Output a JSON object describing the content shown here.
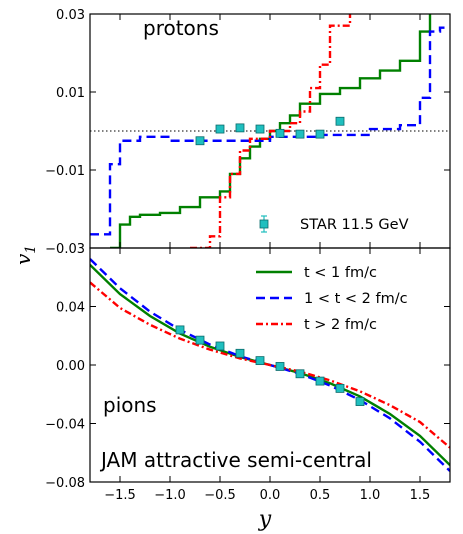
{
  "chart_data": [
    {
      "panel": "top",
      "type": "line",
      "annotation": "protons",
      "xlabel": "y",
      "ylabel": "v1",
      "xlim": [
        -1.8,
        1.8
      ],
      "ylim": [
        -0.03,
        0.03
      ],
      "yticks": [
        -0.03,
        -0.01,
        0.01,
        0.03
      ],
      "yticklabels": [
        "−0.03",
        "−0.01",
        "0.01",
        "0.03"
      ],
      "reference_line": {
        "y": 0.0,
        "style": "dotted",
        "color": "#000000"
      },
      "series": [
        {
          "name": "t < 1 fm/c",
          "color": "#008000",
          "dash": "solid",
          "step": true,
          "x": [
            -1.6,
            -1.5,
            -1.4,
            -1.3,
            -1.1,
            -0.9,
            -0.7,
            -0.5,
            -0.4,
            -0.3,
            -0.2,
            -0.1,
            0.0,
            0.1,
            0.2,
            0.3,
            0.5,
            0.7,
            0.9,
            1.1,
            1.3,
            1.5,
            1.6
          ],
          "y": [
            -0.03,
            -0.024,
            -0.022,
            -0.0215,
            -0.021,
            -0.0195,
            -0.017,
            -0.0155,
            -0.011,
            -0.007,
            -0.004,
            -0.002,
            0.0,
            0.002,
            0.004,
            0.007,
            0.0095,
            0.011,
            0.0135,
            0.0155,
            0.018,
            0.0255,
            0.03
          ]
        },
        {
          "name": "1 < t < 2 fm/c",
          "color": "#0000ff",
          "dash": "dashed",
          "step": true,
          "x": [
            -1.8,
            -1.7,
            -1.6,
            -1.5,
            -1.3,
            -1.0,
            -0.5,
            0.0,
            0.5,
            1.0,
            1.3,
            1.5,
            1.6,
            1.7,
            1.8
          ],
          "y": [
            -0.0265,
            -0.0265,
            -0.0085,
            -0.0025,
            -0.0015,
            -0.0025,
            -0.0025,
            -0.0015,
            -0.001,
            0.0005,
            0.0015,
            0.0085,
            0.0255,
            0.0265,
            0.0265
          ]
        },
        {
          "name": "t > 2 fm/c",
          "color": "#ff0000",
          "dash": "dashdot",
          "step": true,
          "x": [
            -0.8,
            -0.6,
            -0.5,
            -0.4,
            -0.3,
            -0.2,
            0.0,
            0.2,
            0.3,
            0.4,
            0.5,
            0.6,
            0.8
          ],
          "y": [
            -0.03,
            -0.027,
            -0.017,
            -0.011,
            -0.005,
            -0.002,
            0.0,
            0.002,
            0.005,
            0.011,
            0.017,
            0.027,
            0.03
          ]
        }
      ],
      "points": {
        "name": "STAR 11.5 GeV",
        "color": "#1fbfbf",
        "marker": "square",
        "x": [
          -0.7,
          -0.5,
          -0.3,
          -0.1,
          0.1,
          0.3,
          0.5,
          0.7
        ],
        "y": [
          -0.0025,
          0.0005,
          0.0008,
          0.0005,
          -0.0006,
          -0.0008,
          -0.0008,
          0.0025
        ]
      }
    },
    {
      "panel": "bottom",
      "type": "line",
      "annotations": [
        "pions",
        "JAM attractive semi-central"
      ],
      "xlabel": "y",
      "ylabel": "v1",
      "xlim": [
        -1.8,
        1.8
      ],
      "ylim": [
        -0.08,
        0.08
      ],
      "xticks": [
        -1.5,
        -1.0,
        -0.5,
        0.0,
        0.5,
        1.0,
        1.5
      ],
      "xticklabels": [
        "−1.5",
        "−1.0",
        "−0.5",
        "0.0",
        "0.5",
        "1.0",
        "1.5"
      ],
      "yticks": [
        -0.08,
        -0.04,
        0.0,
        0.04
      ],
      "yticklabels": [
        "−0.08",
        "−0.04",
        "0.00",
        "0.04"
      ],
      "series": [
        {
          "name": "t < 1 fm/c",
          "color": "#008000",
          "dash": "solid",
          "x": [
            -1.8,
            -1.5,
            -1.2,
            -0.9,
            -0.6,
            -0.3,
            0.0,
            0.3,
            0.6,
            0.9,
            1.2,
            1.5,
            1.8
          ],
          "y": [
            0.0685,
            0.0485,
            0.0335,
            0.0215,
            0.0125,
            0.0055,
            0.0,
            -0.0055,
            -0.0125,
            -0.0215,
            -0.0335,
            -0.0485,
            -0.0685
          ]
        },
        {
          "name": "1 < t < 2 fm/c",
          "color": "#0000ff",
          "dash": "dashed",
          "x": [
            -1.8,
            -1.5,
            -1.2,
            -0.9,
            -0.6,
            -0.3,
            0.0,
            0.3,
            0.6,
            0.9,
            1.2,
            1.5,
            1.8
          ],
          "y": [
            0.0725,
            0.0525,
            0.0365,
            0.024,
            0.014,
            0.006,
            0.0,
            -0.006,
            -0.014,
            -0.024,
            -0.0365,
            -0.0525,
            -0.0725
          ]
        },
        {
          "name": "t > 2 fm/c",
          "color": "#ff0000",
          "dash": "dashdot",
          "x": [
            -1.8,
            -1.5,
            -1.2,
            -0.9,
            -0.6,
            -0.3,
            0.0,
            0.3,
            0.6,
            0.9,
            1.2,
            1.5,
            1.8
          ],
          "y": [
            0.0565,
            0.039,
            0.0275,
            0.018,
            0.0105,
            0.0045,
            0.0,
            -0.0045,
            -0.0105,
            -0.018,
            -0.0275,
            -0.039,
            -0.0565
          ]
        }
      ],
      "points": {
        "name": "STAR 11.5 GeV",
        "color": "#1fbfbf",
        "marker": "square",
        "x": [
          -0.9,
          -0.7,
          -0.5,
          -0.3,
          -0.1,
          0.1,
          0.3,
          0.5,
          0.7,
          0.9
        ],
        "y": [
          0.024,
          0.017,
          0.013,
          0.008,
          0.003,
          -0.001,
          -0.006,
          -0.011,
          -0.016,
          -0.025
        ]
      }
    }
  ],
  "legend": {
    "placement": "top-right",
    "entries": [
      {
        "label": "t < 1 fm/c",
        "color": "#008000",
        "dash": "solid"
      },
      {
        "label": "1 < t < 2 fm/c",
        "color": "#0000ff",
        "dash": "dashed"
      },
      {
        "label": "t > 2 fm/c",
        "color": "#ff0000",
        "dash": "dashdot"
      }
    ]
  },
  "data_legend": {
    "label": "STAR 11.5 GeV",
    "placement": "bottom-right",
    "color": "#1fbfbf"
  },
  "labels": {
    "ylabel_main": "v",
    "ylabel_sub": "1",
    "xlabel": "y",
    "protons": "protons",
    "pions": "pions",
    "jam": "JAM attractive semi-central",
    "star": "STAR 11.5 GeV"
  }
}
